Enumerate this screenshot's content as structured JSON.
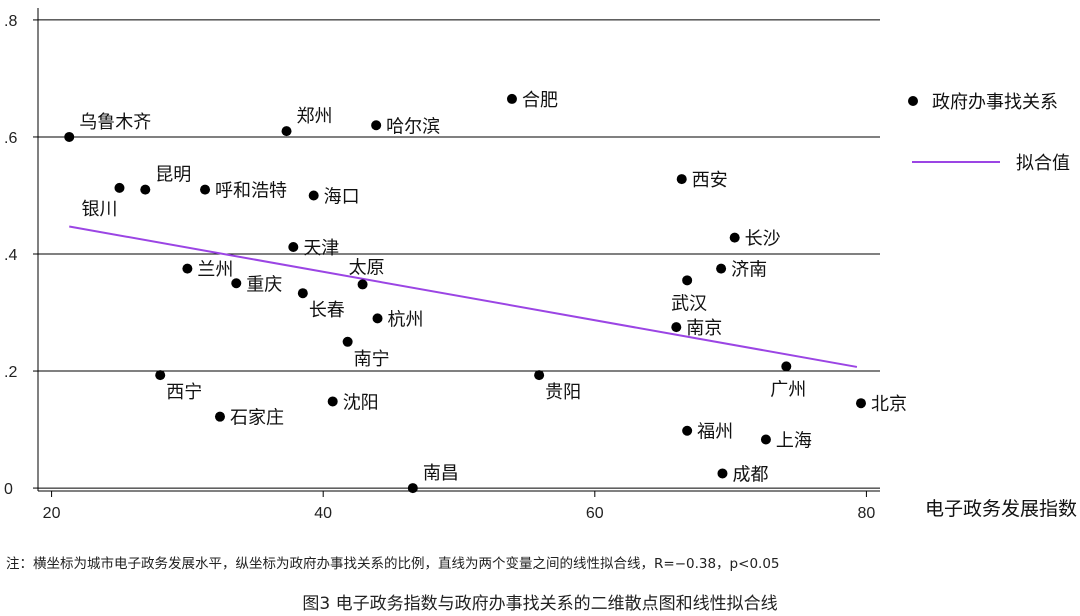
{
  "chart_data": {
    "type": "scatter",
    "xlabel": "电子政务发展指数",
    "xlim": [
      19,
      81
    ],
    "ylim": [
      -0.005,
      0.805
    ],
    "xticks": [
      {
        "value": 20,
        "label": "20"
      },
      {
        "value": 40,
        "label": "40"
      },
      {
        "value": 60,
        "label": "60"
      },
      {
        "value": 80,
        "label": "80"
      }
    ],
    "yticks": [
      {
        "value": 0,
        "label": "0"
      },
      {
        "value": 0.2,
        "label": ".2"
      },
      {
        "value": 0.4,
        "label": ".4"
      },
      {
        "value": 0.6,
        "label": ".6"
      },
      {
        "value": 0.8,
        "label": ".8"
      }
    ],
    "grid": "horizontal",
    "legend_position": "right",
    "marker_color": "#000000",
    "fit_color": "#9b45e4",
    "series": [
      {
        "name": "政府办事找关系",
        "points": [
          {
            "label": "乌鲁木齐",
            "x": 21.3,
            "y": 0.6,
            "lpos": "ur"
          },
          {
            "label": "郑州",
            "x": 37.3,
            "y": 0.61,
            "lpos": "ur"
          },
          {
            "label": "哈尔滨",
            "x": 43.9,
            "y": 0.62,
            "lpos": "r"
          },
          {
            "label": "合肥",
            "x": 53.9,
            "y": 0.665,
            "lpos": "r"
          },
          {
            "label": "昆明",
            "x": 26.9,
            "y": 0.51,
            "lpos": "ur"
          },
          {
            "label": "银川",
            "x": 25.0,
            "y": 0.513,
            "lpos": "dl"
          },
          {
            "label": "呼和浩特",
            "x": 31.3,
            "y": 0.51,
            "lpos": "r"
          },
          {
            "label": "海口",
            "x": 39.3,
            "y": 0.5,
            "lpos": "r"
          },
          {
            "label": "西安",
            "x": 66.4,
            "y": 0.528,
            "lpos": "r"
          },
          {
            "label": "天津",
            "x": 37.8,
            "y": 0.412,
            "lpos": "r"
          },
          {
            "label": "长沙",
            "x": 70.3,
            "y": 0.428,
            "lpos": "r"
          },
          {
            "label": "兰州",
            "x": 30.0,
            "y": 0.375,
            "lpos": "r"
          },
          {
            "label": "重庆",
            "x": 33.6,
            "y": 0.35,
            "lpos": "r"
          },
          {
            "label": "太原",
            "x": 42.9,
            "y": 0.348,
            "lpos": "u"
          },
          {
            "label": "长春",
            "x": 38.5,
            "y": 0.333,
            "lpos": "dr"
          },
          {
            "label": "济南",
            "x": 69.3,
            "y": 0.375,
            "lpos": "r"
          },
          {
            "label": "武汉",
            "x": 66.8,
            "y": 0.355,
            "lpos": "d"
          },
          {
            "label": "杭州",
            "x": 44.0,
            "y": 0.29,
            "lpos": "r"
          },
          {
            "label": "南京",
            "x": 66.0,
            "y": 0.275,
            "lpos": "r"
          },
          {
            "label": "南宁",
            "x": 41.8,
            "y": 0.25,
            "lpos": "dr"
          },
          {
            "label": "西宁",
            "x": 28.0,
            "y": 0.193,
            "lpos": "dr"
          },
          {
            "label": "贵阳",
            "x": 55.9,
            "y": 0.193,
            "lpos": "dr"
          },
          {
            "label": "广州",
            "x": 74.1,
            "y": 0.208,
            "lpos": "d"
          },
          {
            "label": "北京",
            "x": 79.6,
            "y": 0.145,
            "lpos": "r"
          },
          {
            "label": "石家庄",
            "x": 32.4,
            "y": 0.122,
            "lpos": "r"
          },
          {
            "label": "沈阳",
            "x": 40.7,
            "y": 0.148,
            "lpos": "r"
          },
          {
            "label": "福州",
            "x": 66.8,
            "y": 0.098,
            "lpos": "r"
          },
          {
            "label": "上海",
            "x": 72.6,
            "y": 0.083,
            "lpos": "r"
          },
          {
            "label": "成都",
            "x": 69.4,
            "y": 0.025,
            "lpos": "r"
          },
          {
            "label": "南昌",
            "x": 46.6,
            "y": 0.0,
            "lpos": "ur"
          }
        ]
      },
      {
        "name": "拟合值",
        "type": "line",
        "x": [
          21.3,
          79.3
        ],
        "y": [
          0.447,
          0.207
        ]
      }
    ]
  },
  "note": "注：横坐标为城市电子政务发展水平，纵坐标为政府办事找关系的比例，直线为两个变量之间的线性拟合线，R=−0.38，p<0.05",
  "caption": "图3   电子政务指数与政府办事找关系的二维散点图和线性拟合线"
}
